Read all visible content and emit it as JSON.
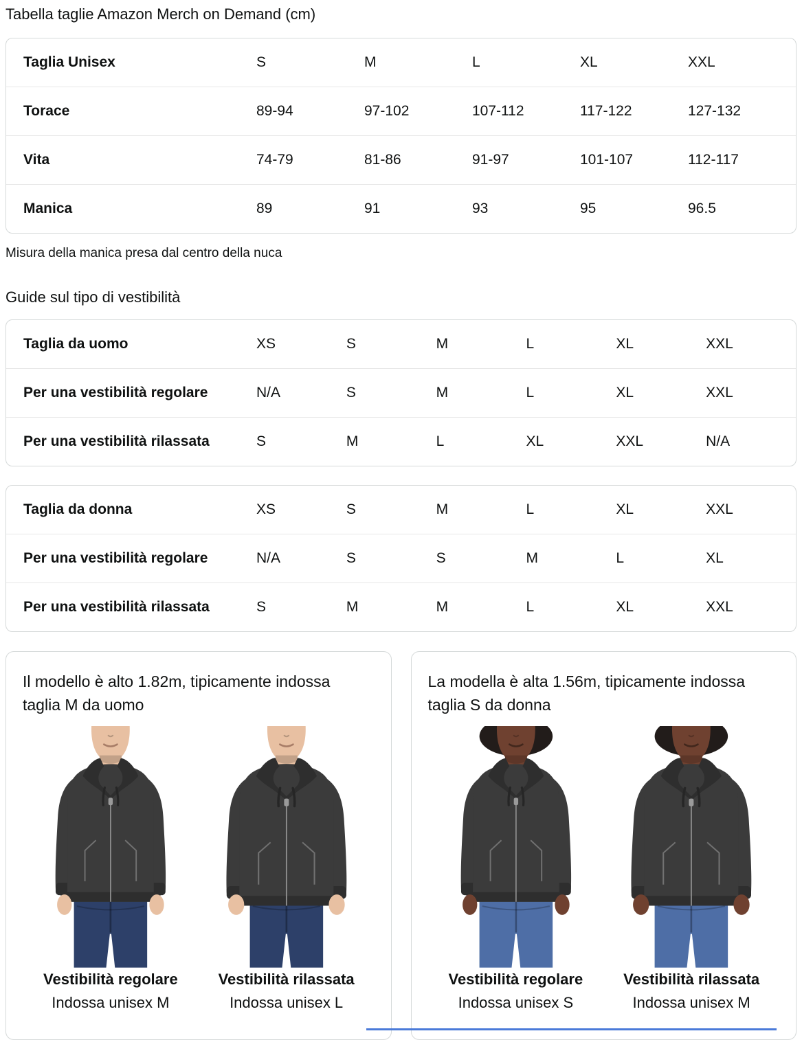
{
  "page": {
    "title": "Tabella taglie Amazon Merch on Demand (cm)",
    "sleeve_note": "Misura della manica presa dal centro della nuca",
    "fit_guide_heading": "Guide sul tipo di vestibilità"
  },
  "size_table": {
    "header": {
      "label": "Taglia Unisex",
      "values": [
        "S",
        "M",
        "L",
        "XL",
        "XXL"
      ]
    },
    "rows": [
      {
        "label": "Torace",
        "values": [
          "89-94",
          "97-102",
          "107-112",
          "117-122",
          "127-132"
        ]
      },
      {
        "label": "Vita",
        "values": [
          "74-79",
          "81-86",
          "91-97",
          "101-107",
          "112-117"
        ]
      },
      {
        "label": "Manica",
        "values": [
          "89",
          "91",
          "93",
          "95",
          "96.5"
        ]
      }
    ]
  },
  "fit_tables": [
    {
      "header": {
        "label": "Taglia da uomo",
        "values": [
          "XS",
          "S",
          "M",
          "L",
          "XL",
          "XXL"
        ]
      },
      "rows": [
        {
          "label": "Per una vestibilità regolare",
          "values": [
            "N/A",
            "S",
            "M",
            "L",
            "XL",
            "XXL"
          ]
        },
        {
          "label": "Per una vestibilità rilassata",
          "values": [
            "S",
            "M",
            "L",
            "XL",
            "XXL",
            "N/A"
          ]
        }
      ]
    },
    {
      "header": {
        "label": "Taglia da donna",
        "values": [
          "XS",
          "S",
          "M",
          "L",
          "XL",
          "XXL"
        ]
      },
      "rows": [
        {
          "label": "Per una vestibilità regolare",
          "values": [
            "N/A",
            "S",
            "S",
            "M",
            "L",
            "XL"
          ]
        },
        {
          "label": "Per una vestibilità rilassata",
          "values": [
            "S",
            "M",
            "M",
            "L",
            "XL",
            "XXL"
          ]
        }
      ]
    }
  ],
  "model_cards": [
    {
      "description": "Il modello è alto 1.82m, tipicamente indossa taglia M da uomo",
      "figures": [
        {
          "fit_label": "Vestibilità regolare",
          "size_label": "Indossa unisex M",
          "model": "male",
          "fit": "regular"
        },
        {
          "fit_label": "Vestibilità rilassata",
          "size_label": "Indossa unisex L",
          "model": "male",
          "fit": "relaxed"
        }
      ]
    },
    {
      "description": "La modella è alta 1.56m, tipicamente indossa taglia S da donna",
      "figures": [
        {
          "fit_label": "Vestibilità regolare",
          "size_label": "Indossa unisex S",
          "model": "female",
          "fit": "regular"
        },
        {
          "fit_label": "Vestibilità rilassata",
          "size_label": "Indossa unisex M",
          "model": "female",
          "fit": "relaxed"
        }
      ]
    }
  ],
  "colors": {
    "text": "#0F1111",
    "border": "#D5D9D9",
    "divider": "#E7E7E7",
    "accent_line": "#4A7AD9",
    "hoodie": "#3B3B3B",
    "hoodie_trim": "#2E2E2E",
    "jeans_male": "#2D4069",
    "jeans_female": "#4E6EA6",
    "skin_male": "#E8C0A2",
    "skin_female": "#6F4130"
  }
}
